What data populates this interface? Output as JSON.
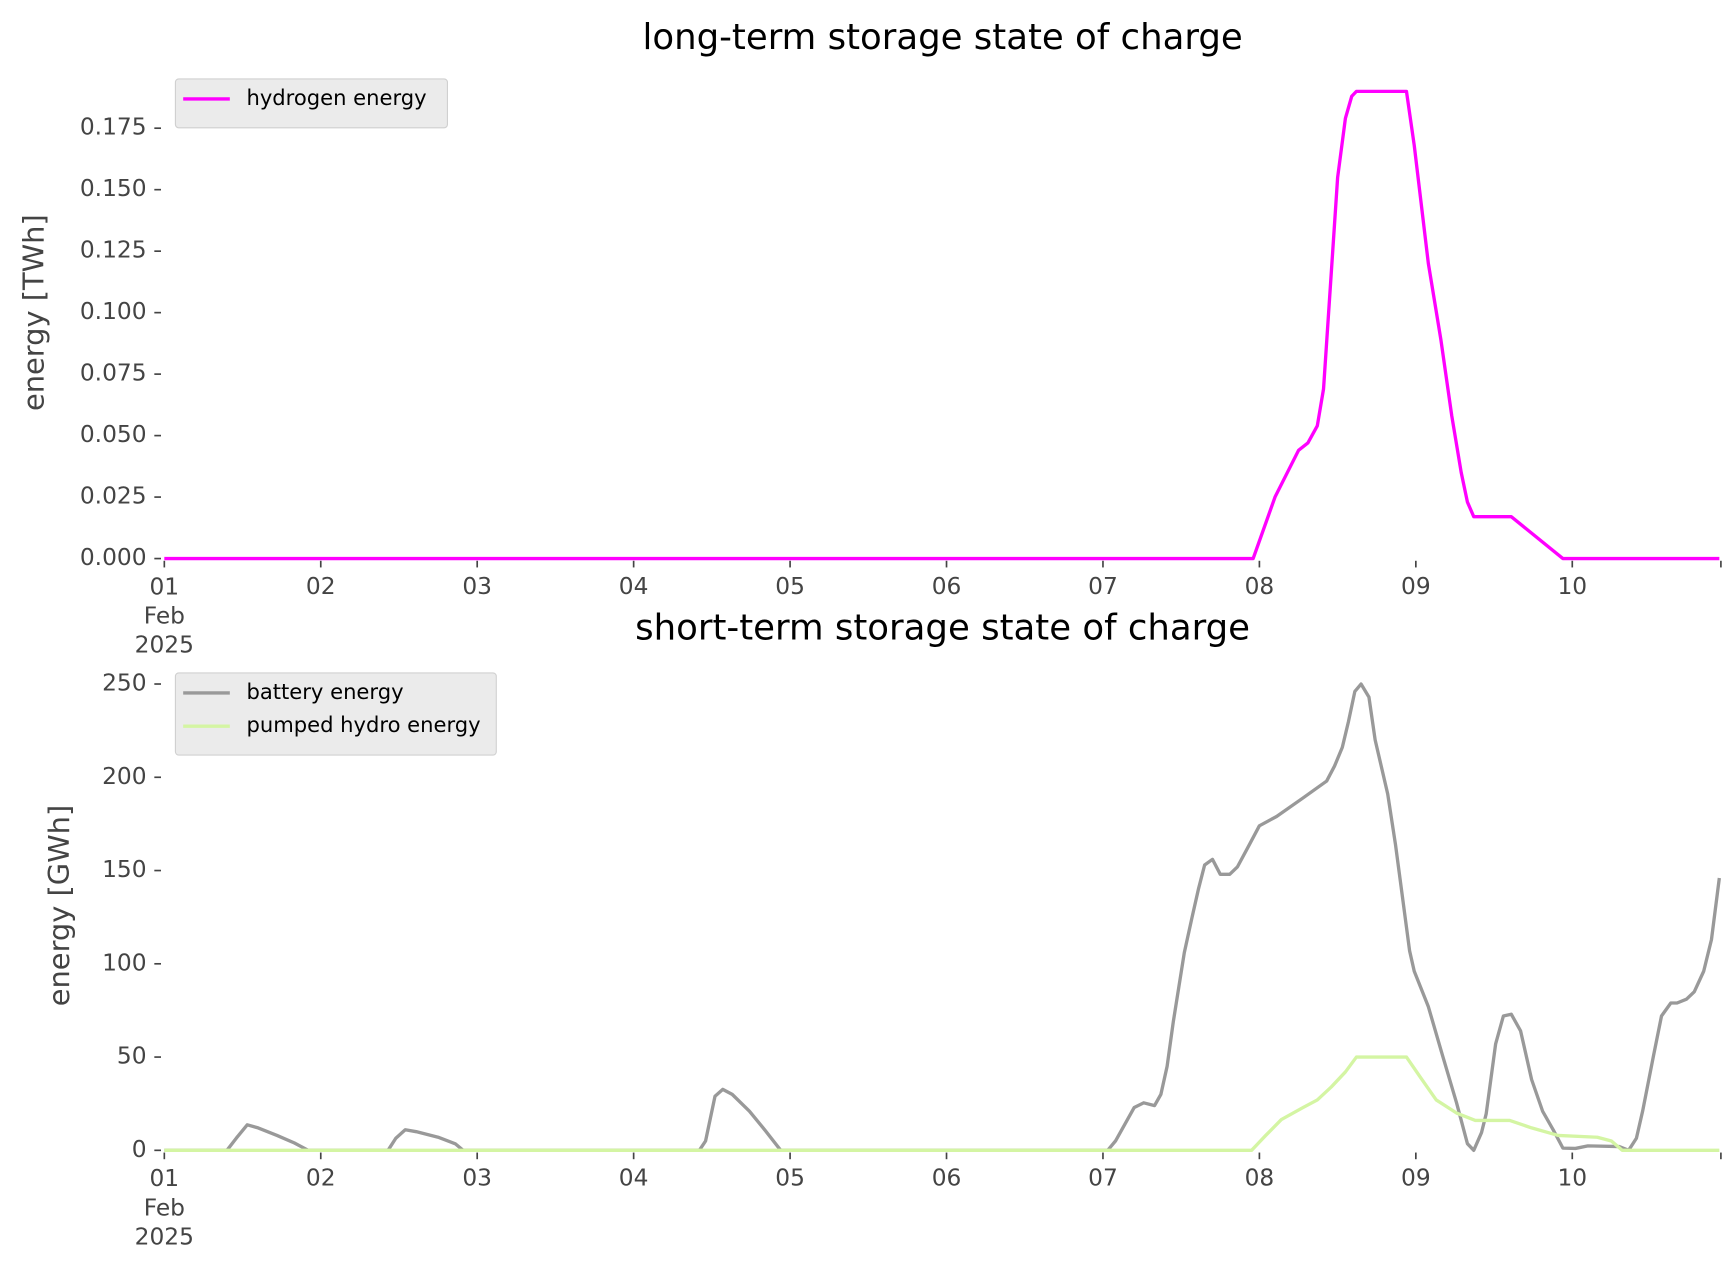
{
  "chart_data": [
    {
      "type": "line",
      "title": "long-term storage state of charge",
      "y_label": "energy [TWh]",
      "xlim": [
        1,
        10.95
      ],
      "xticks": [
        {
          "value": 1,
          "label": "01\nFeb\n2025"
        },
        {
          "value": 2,
          "label": "02"
        },
        {
          "value": 3,
          "label": "03"
        },
        {
          "value": 4,
          "label": "04"
        },
        {
          "value": 5,
          "label": "05"
        },
        {
          "value": 6,
          "label": "06"
        },
        {
          "value": 7,
          "label": "07"
        },
        {
          "value": 8,
          "label": "08"
        },
        {
          "value": 9,
          "label": "09"
        },
        {
          "value": 10,
          "label": "10"
        }
      ],
      "ylim": [
        0,
        0.2
      ],
      "yticks": [
        {
          "value": 0,
          "label": "0.000"
        },
        {
          "value": 0.025,
          "label": "0.025"
        },
        {
          "value": 0.05,
          "label": "0.050"
        },
        {
          "value": 0.075,
          "label": "0.075"
        },
        {
          "value": 0.1,
          "label": "0.100"
        },
        {
          "value": 0.125,
          "label": "0.125"
        },
        {
          "value": 0.15,
          "label": "0.150"
        },
        {
          "value": 0.175,
          "label": "0.175"
        }
      ],
      "legend": "upper left",
      "series": [
        {
          "name": "hydrogen energy",
          "color": "#ff00ff",
          "x": [
            1,
            7.96,
            8.1,
            8.25,
            8.31,
            8.37,
            8.41,
            8.5,
            8.55,
            8.59,
            8.62,
            8.94,
            8.99,
            9.08,
            9.16,
            9.23,
            9.29,
            9.33,
            9.37,
            9.61,
            9.94,
            10.94
          ],
          "values": [
            0,
            0,
            0.025,
            0.044,
            0.047,
            0.054,
            0.069,
            0.155,
            0.179,
            0.188,
            0.19,
            0.19,
            0.168,
            0.12,
            0.089,
            0.058,
            0.035,
            0.023,
            0.017,
            0.017,
            0,
            0
          ]
        }
      ]
    },
    {
      "type": "line",
      "title": "short-term storage state of charge",
      "y_label": "energy [GWh]",
      "xlim": [
        1,
        10.95
      ],
      "xticks": [
        {
          "value": 1,
          "label": "01\nFeb\n2025"
        },
        {
          "value": 2,
          "label": "02"
        },
        {
          "value": 3,
          "label": "03"
        },
        {
          "value": 4,
          "label": "04"
        },
        {
          "value": 5,
          "label": "05"
        },
        {
          "value": 6,
          "label": "06"
        },
        {
          "value": 7,
          "label": "07"
        },
        {
          "value": 8,
          "label": "08"
        },
        {
          "value": 9,
          "label": "09"
        },
        {
          "value": 10,
          "label": "10"
        }
      ],
      "ylim": [
        0,
        262.5
      ],
      "yticks": [
        0,
        50,
        100,
        150,
        200,
        250
      ],
      "legend": "upper left",
      "series": [
        {
          "name": "battery energy",
          "color": "#999999",
          "x": [
            1,
            1.4,
            1.46,
            1.53,
            1.6,
            1.72,
            1.83,
            1.92,
            2.43,
            2.48,
            2.54,
            2.61,
            2.75,
            2.86,
            2.91,
            4.42,
            4.46,
            4.52,
            4.57,
            4.63,
            4.74,
            4.84,
            4.94,
            7.03,
            7.08,
            7.2,
            7.26,
            7.33,
            7.37,
            7.41,
            7.45,
            7.52,
            7.57,
            7.61,
            7.65,
            7.7,
            7.75,
            7.81,
            7.86,
            7.93,
            8.0,
            8.11,
            8.28,
            8.43,
            8.48,
            8.53,
            8.57,
            8.61,
            8.65,
            8.7,
            8.74,
            8.82,
            8.87,
            8.96,
            8.99,
            9.08,
            9.17,
            9.26,
            9.33,
            9.37,
            9.42,
            9.45,
            9.51,
            9.56,
            9.61,
            9.67,
            9.74,
            9.81,
            9.88,
            9.94,
            10.02,
            10.1,
            10.3,
            10.36,
            10.41,
            10.45,
            10.52,
            10.57,
            10.63,
            10.67,
            10.73,
            10.78,
            10.84,
            10.89,
            10.94
          ],
          "values": [
            0,
            0,
            6.5,
            13.7,
            12,
            8,
            4,
            0,
            0,
            6.5,
            11,
            10,
            7,
            3.5,
            0,
            0,
            5,
            29,
            32.7,
            30,
            21,
            10.7,
            0,
            0,
            5,
            23,
            25.5,
            24,
            30,
            45,
            69,
            106,
            125,
            140,
            153,
            156,
            148,
            148,
            152,
            163,
            174,
            179,
            189,
            198,
            206,
            216,
            230,
            246,
            250,
            243,
            220,
            191,
            164,
            107,
            96,
            77,
            51,
            25.5,
            3.6,
            0,
            9.5,
            19.6,
            57,
            72,
            73,
            64,
            38,
            21,
            10.7,
            1.2,
            1,
            2.4,
            2,
            0,
            6.5,
            21,
            51,
            72,
            79,
            79,
            81,
            85,
            96,
            113,
            146
          ]
        },
        {
          "name": "pumped hydro energy",
          "color": "#d4f5a3",
          "x": [
            1,
            7.95,
            8.04,
            8.14,
            8.28,
            8.37,
            8.46,
            8.55,
            8.62,
            8.94,
            9.03,
            9.13,
            9.26,
            9.38,
            9.6,
            9.74,
            9.91,
            10.16,
            10.25,
            10.32,
            10.94
          ],
          "values": [
            0,
            0,
            8,
            16.5,
            23,
            27,
            34,
            42,
            50,
            50,
            39,
            27,
            20,
            16,
            16,
            12,
            8,
            7,
            5,
            0,
            0
          ]
        }
      ]
    }
  ]
}
